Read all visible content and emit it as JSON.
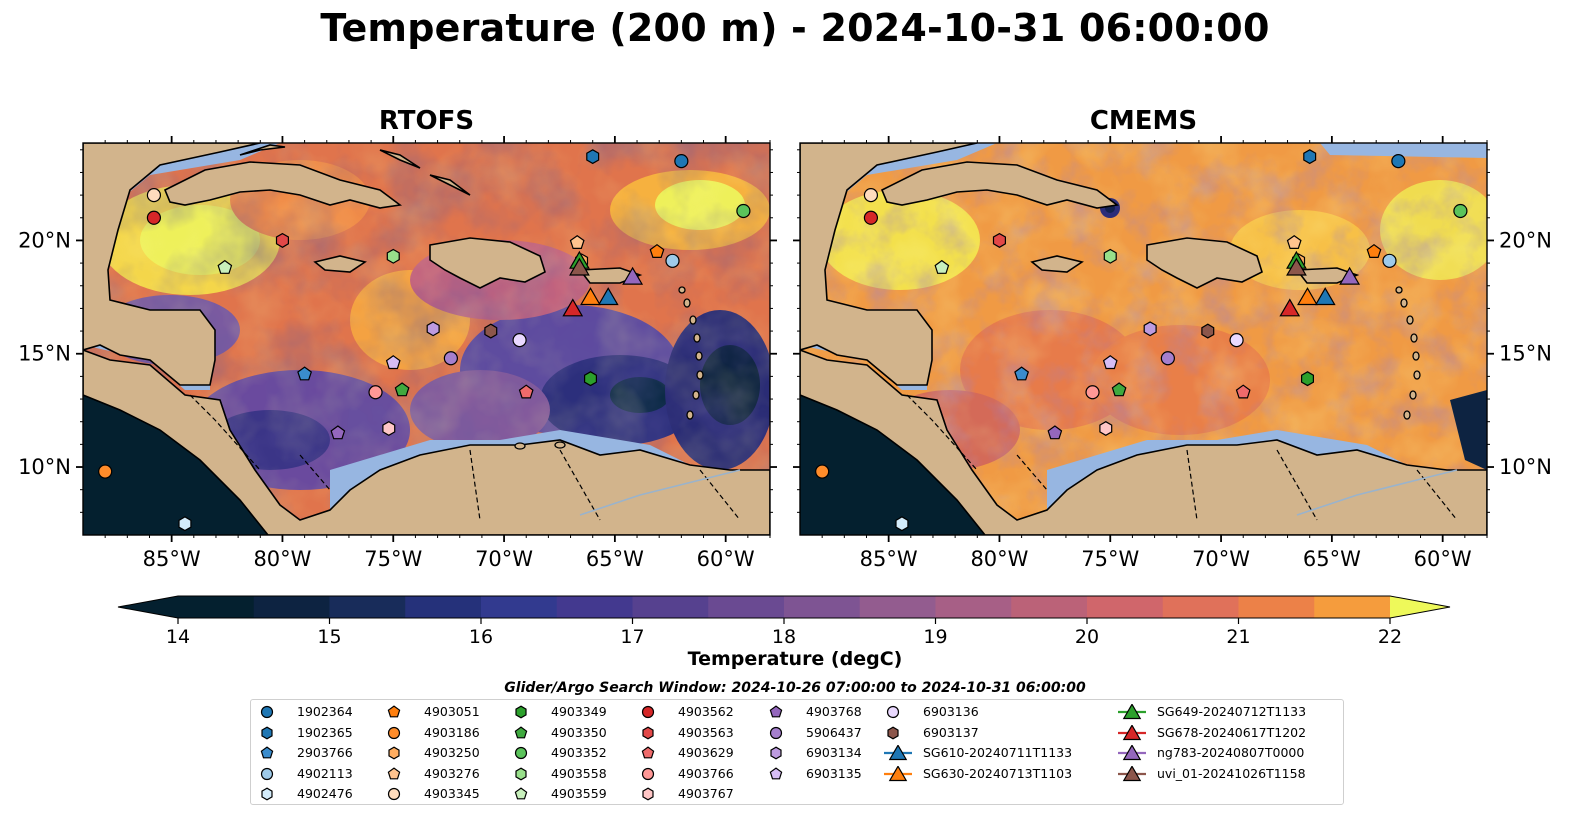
{
  "title": "Temperature (200 m) - 2024-10-31 06:00:00",
  "panels": [
    {
      "title": "RTOFS"
    },
    {
      "title": "CMEMS"
    }
  ],
  "lon_ticks": [
    "85°W",
    "80°W",
    "75°W",
    "70°W",
    "65°W",
    "60°W"
  ],
  "lat_ticks": [
    "20°N",
    "15°N",
    "10°N"
  ],
  "map_extent": {
    "lon": [
      -89,
      -58
    ],
    "lat": [
      7,
      24.3
    ]
  },
  "colorbar": {
    "label": "Temperature (degC)",
    "min": 14,
    "max": 22,
    "step": 0.5,
    "ticks": [
      "14",
      "15",
      "16",
      "17",
      "18",
      "19",
      "20",
      "21",
      "22"
    ],
    "extend": "both",
    "colormap": "thermal"
  },
  "search_window": "Glider/Argo Search Window: 2024-10-26 07:00:00 to 2024-10-31 06:00:00",
  "colors": {
    "land": "#d2b48c",
    "shallow_water": "#97b6e1",
    "deep_cold": "#04202f"
  },
  "legend": [
    {
      "label": "1902364",
      "marker": "circle",
      "color": "#1f77b4",
      "lon": -62.0,
      "lat": 23.5
    },
    {
      "label": "1902365",
      "marker": "hexagon",
      "color": "#1f77b4",
      "lon": -66.0,
      "lat": 23.7
    },
    {
      "label": "2903766",
      "marker": "pentagon",
      "color": "#3a8ccd",
      "lon": -79.0,
      "lat": 14.1
    },
    {
      "label": "4902113",
      "marker": "circle",
      "color": "#9ecae9",
      "lon": -62.4,
      "lat": 19.1
    },
    {
      "label": "4902476",
      "marker": "hexagon",
      "color": "#d4ecfb",
      "lon": -84.4,
      "lat": 7.5
    },
    {
      "label": "4903051",
      "marker": "pentagon",
      "color": "#ff7f0e",
      "lon": -63.1,
      "lat": 19.5
    },
    {
      "label": "4903186",
      "marker": "circle",
      "color": "#ff8c2a",
      "lon": -88.0,
      "lat": 9.8
    },
    {
      "label": "4903250",
      "marker": "hexagon",
      "color": "#ffad60",
      "lon": -66.5,
      "lat": 19.1
    },
    {
      "label": "4903276",
      "marker": "pentagon",
      "color": "#ffc38e",
      "lon": -66.7,
      "lat": 19.9
    },
    {
      "label": "4903345",
      "marker": "circle",
      "color": "#ffdcbd",
      "lon": -85.8,
      "lat": 22.0
    },
    {
      "label": "4903349",
      "marker": "hexagon",
      "color": "#2ca02c",
      "lon": -66.1,
      "lat": 13.9
    },
    {
      "label": "4903350",
      "marker": "pentagon",
      "color": "#3fa93f",
      "lon": -74.6,
      "lat": 13.4
    },
    {
      "label": "4903352",
      "marker": "circle",
      "color": "#5bc35b",
      "lon": -59.2,
      "lat": 21.3
    },
    {
      "label": "4903558",
      "marker": "hexagon",
      "color": "#98df8a",
      "lon": -75.0,
      "lat": 19.3
    },
    {
      "label": "4903559",
      "marker": "pentagon",
      "color": "#c8f0bc",
      "lon": -82.6,
      "lat": 18.8
    },
    {
      "label": "4903562",
      "marker": "circle",
      "color": "#d62728",
      "lon": -85.8,
      "lat": 21.0
    },
    {
      "label": "4903563",
      "marker": "hexagon",
      "color": "#e24848",
      "lon": -80.0,
      "lat": 20.0
    },
    {
      "label": "4903629",
      "marker": "pentagon",
      "color": "#ef6b6b",
      "lon": -69.0,
      "lat": 13.3
    },
    {
      "label": "4903766",
      "marker": "circle",
      "color": "#ff9896",
      "lon": -75.8,
      "lat": 13.3
    },
    {
      "label": "4903767",
      "marker": "hexagon",
      "color": "#ffc6c6",
      "lon": -75.2,
      "lat": 11.7
    },
    {
      "label": "4903768",
      "marker": "pentagon",
      "color": "#9467bd",
      "lon": -77.5,
      "lat": 11.5
    },
    {
      "label": "5906437",
      "marker": "circle",
      "color": "#a57fcd",
      "lon": -72.4,
      "lat": 14.8
    },
    {
      "label": "6903134",
      "marker": "hexagon",
      "color": "#bd9bdf",
      "lon": -73.2,
      "lat": 16.1
    },
    {
      "label": "6903135",
      "marker": "pentagon",
      "color": "#d6bdf5",
      "lon": -75.0,
      "lat": 14.6
    },
    {
      "label": "6903136",
      "marker": "circle",
      "color": "#ead9ff",
      "lon": -69.3,
      "lat": 15.6
    },
    {
      "label": "6903137",
      "marker": "hexagon",
      "color": "#8c564b",
      "lon": -70.6,
      "lat": 16.0
    },
    {
      "label": "SG610-20240711T1133",
      "marker": "triangle-line",
      "color": "#1f77b4",
      "lon": -65.3,
      "lat": 17.5
    },
    {
      "label": "SG630-20240713T1103",
      "marker": "triangle-line",
      "color": "#ff7f0e",
      "lon": -66.1,
      "lat": 17.5
    },
    {
      "label": "SG649-20240712T1133",
      "marker": "triangle-line",
      "color": "#2ca02c",
      "lon": -66.6,
      "lat": 19.1
    },
    {
      "label": "SG678-20240617T1202",
      "marker": "triangle-line",
      "color": "#d62728",
      "lon": -66.9,
      "lat": 17.0
    },
    {
      "label": "ng783-20240807T0000",
      "marker": "triangle-line",
      "color": "#9467bd",
      "lon": -64.2,
      "lat": 18.4
    },
    {
      "label": "uvi_01-20241026T1158",
      "marker": "triangle-line",
      "color": "#8c564b",
      "lon": -66.6,
      "lat": 18.8
    }
  ]
}
